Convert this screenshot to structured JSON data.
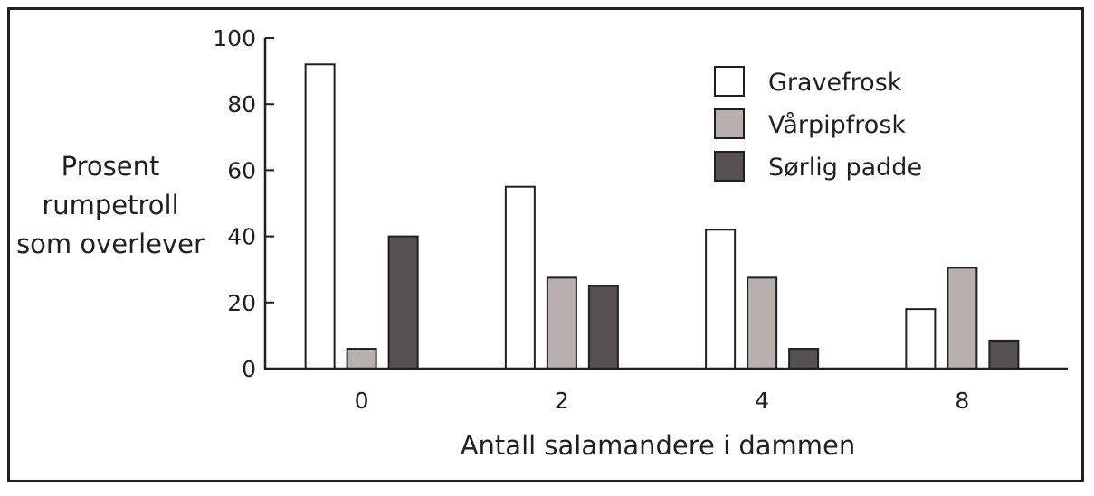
{
  "chart_data": {
    "type": "bar",
    "categories": [
      "0",
      "2",
      "4",
      "8"
    ],
    "series": [
      {
        "name": "Gravefrosk",
        "values": [
          92,
          55,
          42,
          18
        ],
        "color": "#ffffff"
      },
      {
        "name": "Vårpipfrosk",
        "values": [
          6,
          27.5,
          27.5,
          30.5
        ],
        "color": "#b8afaf"
      },
      {
        "name": "Sørlig padde",
        "values": [
          40,
          25,
          6,
          8.5
        ],
        "color": "#555152"
      }
    ],
    "xlabel": "Antall salamandere i dammen",
    "ylabel_lines": [
      "Prosent",
      "rumpetroll",
      "som overlever"
    ],
    "ylim": [
      0,
      100
    ],
    "yticks": [
      0,
      20,
      40,
      60,
      80,
      100
    ],
    "legend_position": "top-right",
    "grid": false
  }
}
